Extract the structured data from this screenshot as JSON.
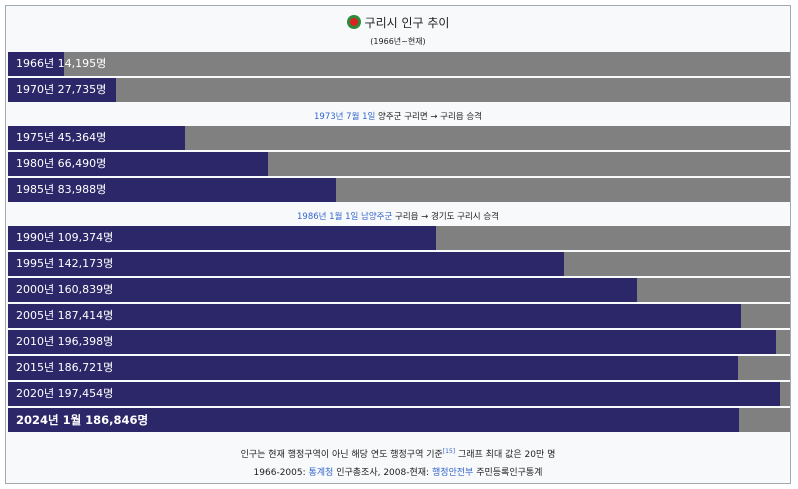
{
  "header": {
    "title": "구리시 인구 추이",
    "subtitle": "(1966년~현재)"
  },
  "events": [
    {
      "link_text": "1973년 7월 1일",
      "text": " 양주군 구리면 → 구리읍 승격"
    },
    {
      "link_text": "1986년 1월 1일 남양주군",
      "text": " 구리읍 → 경기도 구리시 승격"
    }
  ],
  "chart_data": {
    "type": "bar",
    "orientation": "horizontal",
    "title": "구리시 인구 추이",
    "subtitle": "(1966년~현재)",
    "xlim": [
      0,
      200000
    ],
    "categories": [
      "1966년",
      "1970년",
      "1975년",
      "1980년",
      "1985년",
      "1990년",
      "1995년",
      "2000년",
      "2005년",
      "2010년",
      "2015년",
      "2020년",
      "2024년 1월"
    ],
    "values": [
      14195,
      27735,
      45364,
      66490,
      83988,
      109374,
      142173,
      160839,
      187414,
      196398,
      186721,
      197454,
      186846
    ],
    "labels": [
      "1966년 14,195명",
      "1970년 27,735명",
      "1975년 45,364명",
      "1980년 66,490명",
      "1985년 83,988명",
      "1990년 109,374명",
      "1995년 142,173명",
      "2000년 160,839명",
      "2005년 187,414명",
      "2010년 196,398명",
      "2015년 186,721명",
      "2020년 197,454명",
      "2024년 1월 186,846명"
    ],
    "bar_color": "#2c2768",
    "track_color": "#808080"
  },
  "footer": {
    "note_before": "인구는 현재 행정구역이 아닌 해당 연도 행정구역 기준",
    "ref": "[15]",
    "note_after": " 그래프 최대 값은 20만 명",
    "src_1_prefix": "1966-2005: ",
    "src_1_link": "통계청",
    "src_1_text": " 인구총조사, 2008-현재: ",
    "src_2_link": "행정안전부",
    "src_2_text": " 주민등록인구통계"
  }
}
